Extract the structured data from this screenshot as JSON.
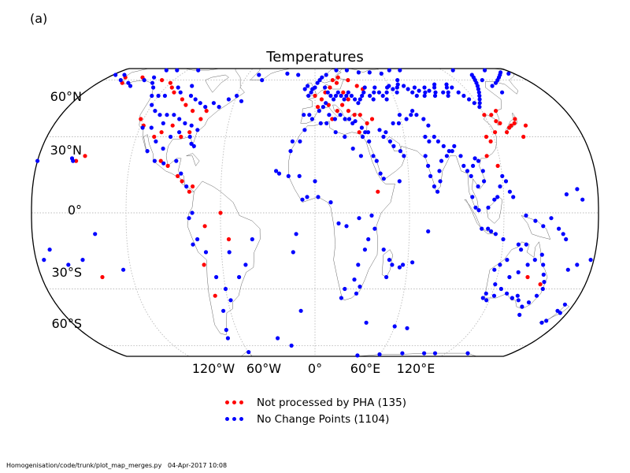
{
  "panel_label": "(a)",
  "title": "Temperatures",
  "lat_labels": [
    "60°N",
    "30°N",
    "0°",
    "30°S",
    "60°S"
  ],
  "lon_labels": [
    "120°W",
    "60°W",
    "0°",
    "60°E",
    "120°E"
  ],
  "legend": [
    {
      "label": "Not processed by PHA (135)",
      "color": "#ff0000"
    },
    {
      "label": "No Change Points (1104)",
      "color": "#0000ff"
    }
  ],
  "footer": "Homogenisation/code/trunk/plot_map_merges.py   04-Apr-2017 10:08",
  "colors": {
    "red": "#ff0000",
    "blue": "#0000ff",
    "outline": "#000000",
    "grid": "#bbbbbb",
    "coast": "#666666"
  },
  "stations": {
    "red": [
      [
        -150,
        62
      ],
      [
        -130,
        60
      ],
      [
        -120,
        58
      ],
      [
        -115,
        55
      ],
      [
        -110,
        52
      ],
      [
        -100,
        48
      ],
      [
        -95,
        45
      ],
      [
        -98,
        35
      ],
      [
        -104,
        32
      ],
      [
        -108,
        30
      ],
      [
        -118,
        35
      ],
      [
        -122,
        38
      ],
      [
        -160,
        58
      ],
      [
        -165,
        62
      ],
      [
        -88,
        42
      ],
      [
        -80,
        38
      ],
      [
        -78,
        42
      ],
      [
        -90,
        30
      ],
      [
        -85,
        32
      ],
      [
        -150,
        22
      ],
      [
        -155,
        20
      ],
      [
        -100,
        20
      ],
      [
        -95,
        18
      ],
      [
        -88,
        14
      ],
      [
        -85,
        12
      ],
      [
        -80,
        8
      ],
      [
        -78,
        10
      ],
      [
        -70,
        -5
      ],
      [
        -72,
        -20
      ],
      [
        -68,
        -33
      ],
      [
        -55,
        -10
      ],
      [
        -60,
        0
      ],
      [
        -140,
        -25
      ],
      [
        12,
        55
      ],
      [
        18,
        58
      ],
      [
        22,
        52
      ],
      [
        25,
        48
      ],
      [
        20,
        45
      ],
      [
        24,
        42
      ],
      [
        28,
        40
      ],
      [
        36,
        36
      ],
      [
        40,
        38
      ],
      [
        30,
        32
      ],
      [
        32,
        40
      ],
      [
        5,
        48
      ],
      [
        10,
        45
      ],
      [
        2,
        44
      ],
      [
        0,
        50
      ],
      [
        8,
        52
      ],
      [
        15,
        60
      ],
      [
        20,
        62
      ],
      [
        28,
        60
      ],
      [
        34,
        56
      ],
      [
        38,
        54
      ],
      [
        40,
        8
      ],
      [
        12,
        38
      ],
      [
        16,
        42
      ],
      [
        130,
        42
      ],
      [
        128,
        36
      ],
      [
        135,
        35
      ],
      [
        138,
        36
      ],
      [
        140,
        38
      ],
      [
        133,
        34
      ],
      [
        130,
        32
      ],
      [
        126,
        37
      ],
      [
        122,
        32
      ],
      [
        117,
        28
      ],
      [
        115,
        30
      ],
      [
        112,
        22
      ],
      [
        118,
        18
      ],
      [
        140,
        -25
      ],
      [
        150,
        -28
      ],
      [
        120,
        40
      ],
      [
        125,
        40
      ],
      [
        140,
        30
      ],
      [
        145,
        35
      ]
    ],
    "blue": [
      [
        -170,
        64
      ],
      [
        -165,
        60
      ],
      [
        -155,
        58
      ],
      [
        -150,
        56
      ],
      [
        -145,
        60
      ],
      [
        -140,
        62
      ],
      [
        -135,
        58
      ],
      [
        -130,
        55
      ],
      [
        -125,
        50
      ],
      [
        -120,
        50
      ],
      [
        -115,
        50
      ],
      [
        -110,
        55
      ],
      [
        -105,
        52
      ],
      [
        -100,
        56
      ],
      [
        -95,
        50
      ],
      [
        -90,
        48
      ],
      [
        -85,
        46
      ],
      [
        -80,
        44
      ],
      [
        -75,
        46
      ],
      [
        -70,
        44
      ],
      [
        -65,
        48
      ],
      [
        -60,
        50
      ],
      [
        -55,
        47
      ],
      [
        -120,
        45
      ],
      [
        -115,
        42
      ],
      [
        -110,
        40
      ],
      [
        -105,
        40
      ],
      [
        -100,
        40
      ],
      [
        -95,
        38
      ],
      [
        -90,
        36
      ],
      [
        -85,
        35
      ],
      [
        -80,
        33
      ],
      [
        -118,
        34
      ],
      [
        -112,
        34
      ],
      [
        -105,
        36
      ],
      [
        -97,
        30
      ],
      [
        -92,
        32
      ],
      [
        -84,
        30
      ],
      [
        -82,
        27
      ],
      [
        -80,
        26
      ],
      [
        -100,
        25
      ],
      [
        -106,
        28
      ],
      [
        -110,
        24
      ],
      [
        -104,
        20
      ],
      [
        -98,
        19
      ],
      [
        -90,
        20
      ],
      [
        -86,
        15
      ],
      [
        -82,
        10
      ],
      [
        -78,
        0
      ],
      [
        -75,
        -10
      ],
      [
        -70,
        -15
      ],
      [
        -65,
        -25
      ],
      [
        -60,
        -30
      ],
      [
        -58,
        -35
      ],
      [
        -65,
        -40
      ],
      [
        -68,
        -50
      ],
      [
        -70,
        -55
      ],
      [
        -40,
        -10
      ],
      [
        -45,
        -20
      ],
      [
        -50,
        -25
      ],
      [
        -55,
        -15
      ],
      [
        -80,
        -2
      ],
      [
        -78,
        -12
      ],
      [
        -150,
        -18
      ],
      [
        -160,
        -20
      ],
      [
        -170,
        -14
      ],
      [
        -175,
        -18
      ],
      [
        -158,
        21
      ],
      [
        -157,
        20
      ],
      [
        -180,
        20
      ],
      [
        -140,
        -8
      ],
      [
        -125,
        -22
      ],
      [
        -160,
        70
      ],
      [
        -150,
        70
      ],
      [
        -140,
        68
      ],
      [
        -130,
        68
      ],
      [
        -120,
        70
      ],
      [
        -110,
        68
      ],
      [
        -100,
        70
      ],
      [
        -90,
        72
      ],
      [
        -80,
        74
      ],
      [
        -70,
        76
      ],
      [
        -60,
        72
      ],
      [
        -50,
        64
      ],
      [
        -45,
        60
      ],
      [
        -25,
        65
      ],
      [
        -20,
        70
      ],
      [
        -15,
        64
      ],
      [
        0,
        55
      ],
      [
        2,
        58
      ],
      [
        4,
        60
      ],
      [
        6,
        62
      ],
      [
        8,
        55
      ],
      [
        10,
        52
      ],
      [
        12,
        50
      ],
      [
        14,
        48
      ],
      [
        16,
        50
      ],
      [
        18,
        52
      ],
      [
        20,
        50
      ],
      [
        22,
        48
      ],
      [
        24,
        50
      ],
      [
        26,
        52
      ],
      [
        28,
        50
      ],
      [
        30,
        48
      ],
      [
        32,
        46
      ],
      [
        34,
        48
      ],
      [
        36,
        50
      ],
      [
        38,
        52
      ],
      [
        40,
        55
      ],
      [
        42,
        50
      ],
      [
        44,
        48
      ],
      [
        46,
        52
      ],
      [
        48,
        55
      ],
      [
        50,
        52
      ],
      [
        52,
        50
      ],
      [
        54,
        48
      ],
      [
        56,
        52
      ],
      [
        58,
        55
      ],
      [
        60,
        56
      ],
      [
        62,
        54
      ],
      [
        64,
        52
      ],
      [
        66,
        55
      ],
      [
        68,
        57
      ],
      [
        70,
        60
      ],
      [
        72,
        56
      ],
      [
        74,
        54
      ],
      [
        76,
        52
      ],
      [
        78,
        50
      ],
      [
        80,
        55
      ],
      [
        82,
        53
      ],
      [
        84,
        50
      ],
      [
        86,
        52
      ],
      [
        88,
        55
      ],
      [
        90,
        53
      ],
      [
        92,
        50
      ],
      [
        94,
        52
      ],
      [
        96,
        55
      ],
      [
        98,
        57
      ],
      [
        100,
        52
      ],
      [
        102,
        50
      ],
      [
        104,
        52
      ],
      [
        106,
        55
      ],
      [
        108,
        57
      ],
      [
        110,
        55
      ],
      [
        112,
        52
      ],
      [
        114,
        50
      ],
      [
        116,
        48
      ],
      [
        118,
        46
      ],
      [
        120,
        44
      ],
      [
        122,
        46
      ],
      [
        124,
        48
      ],
      [
        126,
        50
      ],
      [
        128,
        52
      ],
      [
        130,
        54
      ],
      [
        132,
        56
      ],
      [
        134,
        58
      ],
      [
        136,
        60
      ],
      [
        138,
        62
      ],
      [
        140,
        64
      ],
      [
        142,
        60
      ],
      [
        144,
        56
      ],
      [
        146,
        52
      ],
      [
        150,
        58
      ],
      [
        155,
        60
      ],
      [
        160,
        62
      ],
      [
        165,
        64
      ],
      [
        170,
        66
      ],
      [
        175,
        65
      ],
      [
        -178,
        64
      ],
      [
        60,
        65
      ],
      [
        70,
        68
      ],
      [
        80,
        68
      ],
      [
        90,
        70
      ],
      [
        100,
        72
      ],
      [
        110,
        70
      ],
      [
        120,
        70
      ],
      [
        130,
        68
      ],
      [
        140,
        70
      ],
      [
        150,
        70
      ],
      [
        160,
        68
      ],
      [
        50,
        66
      ],
      [
        40,
        66
      ],
      [
        30,
        68
      ],
      [
        20,
        68
      ],
      [
        10,
        64
      ],
      [
        -5,
        50
      ],
      [
        -3,
        52
      ],
      [
        -2,
        54
      ],
      [
        -6,
        56
      ],
      [
        -8,
        54
      ],
      [
        -4,
        40
      ],
      [
        -2,
        38
      ],
      [
        -8,
        40
      ],
      [
        3,
        42
      ],
      [
        6,
        44
      ],
      [
        8,
        46
      ],
      [
        10,
        40
      ],
      [
        14,
        38
      ],
      [
        18,
        40
      ],
      [
        21,
        38
      ],
      [
        24,
        38
      ],
      [
        26,
        36
      ],
      [
        28,
        37
      ],
      [
        32,
        34
      ],
      [
        34,
        32
      ],
      [
        36,
        32
      ],
      [
        44,
        33
      ],
      [
        46,
        30
      ],
      [
        50,
        28
      ],
      [
        52,
        26
      ],
      [
        56,
        24
      ],
      [
        58,
        22
      ],
      [
        48,
        32
      ],
      [
        54,
        36
      ],
      [
        58,
        36
      ],
      [
        60,
        40
      ],
      [
        64,
        38
      ],
      [
        68,
        40
      ],
      [
        70,
        42
      ],
      [
        72,
        40
      ],
      [
        76,
        38
      ],
      [
        78,
        35
      ],
      [
        80,
        30
      ],
      [
        82,
        28
      ],
      [
        85,
        26
      ],
      [
        88,
        24
      ],
      [
        74,
        30
      ],
      [
        76,
        28
      ],
      [
        72,
        22
      ],
      [
        73,
        18
      ],
      [
        74,
        14
      ],
      [
        76,
        10
      ],
      [
        78,
        8
      ],
      [
        80,
        12
      ],
      [
        80,
        16
      ],
      [
        82,
        20
      ],
      [
        86,
        22
      ],
      [
        90,
        24
      ],
      [
        92,
        26
      ],
      [
        95,
        22
      ],
      [
        96,
        18
      ],
      [
        98,
        16
      ],
      [
        100,
        14
      ],
      [
        102,
        18
      ],
      [
        104,
        21
      ],
      [
        106,
        20
      ],
      [
        108,
        16
      ],
      [
        108,
        12
      ],
      [
        104,
        10
      ],
      [
        100,
        6
      ],
      [
        102,
        2
      ],
      [
        104,
        1
      ],
      [
        110,
        2
      ],
      [
        114,
        5
      ],
      [
        116,
        6
      ],
      [
        118,
        10
      ],
      [
        120,
        14
      ],
      [
        122,
        12
      ],
      [
        124,
        8
      ],
      [
        126,
        6
      ],
      [
        110,
        -6
      ],
      [
        112,
        -7
      ],
      [
        106,
        -6
      ],
      [
        115,
        -8
      ],
      [
        120,
        -10
      ],
      [
        130,
        -12
      ],
      [
        132,
        -14
      ],
      [
        135,
        -12
      ],
      [
        138,
        -20
      ],
      [
        142,
        -18
      ],
      [
        146,
        -16
      ],
      [
        148,
        -20
      ],
      [
        150,
        -24
      ],
      [
        152,
        -27
      ],
      [
        153,
        -30
      ],
      [
        151,
        -33
      ],
      [
        148,
        -36
      ],
      [
        145,
        -38
      ],
      [
        140,
        -35
      ],
      [
        138,
        -33
      ],
      [
        135,
        -34
      ],
      [
        130,
        -32
      ],
      [
        125,
        -30
      ],
      [
        120,
        -28
      ],
      [
        116,
        -32
      ],
      [
        115,
        -34
      ],
      [
        118,
        -35
      ],
      [
        122,
        -33
      ],
      [
        128,
        -25
      ],
      [
        133,
        -23
      ],
      [
        120,
        -20
      ],
      [
        117,
        -22
      ],
      [
        124,
        -18
      ],
      [
        147,
        -42
      ],
      [
        172,
        -40
      ],
      [
        174,
        -37
      ],
      [
        175,
        -41
      ],
      [
        170,
        -45
      ],
      [
        168,
        -46
      ],
      [
        178,
        -18
      ],
      [
        170,
        -20
      ],
      [
        165,
        -22
      ],
      [
        160,
        -10
      ],
      [
        155,
        -6
      ],
      [
        158,
        -8
      ],
      [
        150,
        -2
      ],
      [
        145,
        -5
      ],
      [
        140,
        -3
      ],
      [
        134,
        -1
      ],
      [
        170,
        5
      ],
      [
        160,
        7
      ],
      [
        167,
        9
      ],
      [
        -30,
        -55
      ],
      [
        -20,
        -60
      ],
      [
        0,
        -70
      ],
      [
        20,
        -70
      ],
      [
        40,
        -68
      ],
      [
        60,
        -67
      ],
      [
        80,
        -66
      ],
      [
        100,
        -66
      ],
      [
        110,
        -66
      ],
      [
        140,
        -66
      ],
      [
        160,
        -78
      ],
      [
        -60,
        -65
      ],
      [
        -70,
        -70
      ],
      [
        -80,
        -75
      ],
      [
        -100,
        -78
      ],
      [
        -120,
        -80
      ],
      [
        -160,
        -78
      ],
      [
        170,
        -78
      ],
      [
        -40,
        -78
      ],
      [
        10,
        -72
      ],
      [
        -10,
        -75
      ],
      [
        60,
        -48
      ],
      [
        70,
        -49
      ],
      [
        38,
        -46
      ],
      [
        -10,
        -40
      ],
      [
        -12,
        -8
      ],
      [
        -14,
        -15
      ],
      [
        -25,
        16
      ],
      [
        -23,
        15
      ],
      [
        -17,
        14
      ],
      [
        -8,
        5
      ],
      [
        -5,
        6
      ],
      [
        -10,
        14
      ],
      [
        0,
        12
      ],
      [
        2,
        6
      ],
      [
        10,
        4
      ],
      [
        15,
        -4
      ],
      [
        20,
        -5
      ],
      [
        28,
        -2
      ],
      [
        36,
        -1
      ],
      [
        38,
        -6
      ],
      [
        34,
        -10
      ],
      [
        32,
        -14
      ],
      [
        28,
        -20
      ],
      [
        26,
        -26
      ],
      [
        30,
        -29
      ],
      [
        28,
        -32
      ],
      [
        18,
        -34
      ],
      [
        20,
        -30
      ],
      [
        44,
        -14
      ],
      [
        48,
        -18
      ],
      [
        50,
        -20
      ],
      [
        47,
        -25
      ],
      [
        55,
        -21
      ],
      [
        57,
        -20
      ],
      [
        63,
        -19
      ],
      [
        72,
        -7
      ],
      [
        54,
        12
      ],
      [
        42,
        15
      ],
      [
        44,
        13
      ],
      [
        40,
        20
      ],
      [
        38,
        22
      ],
      [
        36,
        28
      ],
      [
        32,
        30
      ],
      [
        30,
        22
      ],
      [
        25,
        25
      ],
      [
        20,
        30
      ],
      [
        14,
        32
      ],
      [
        8,
        36
      ],
      [
        4,
        36
      ],
      [
        -7,
        33
      ],
      [
        -10,
        28
      ],
      [
        -16,
        24
      ],
      [
        -15,
        28
      ]
    ]
  }
}
